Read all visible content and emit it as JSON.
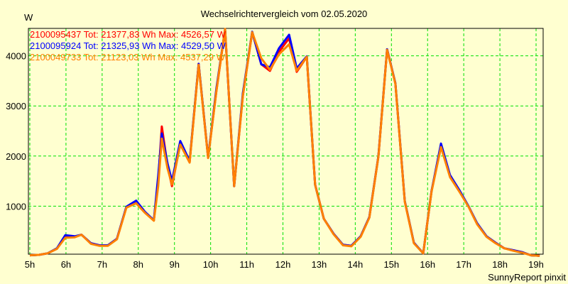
{
  "chart_data": {
    "type": "line",
    "title": "Wechselrichtervergleich vom 02.05.2020",
    "ylabel": "W",
    "xlabel": "",
    "footer": "SunnyReport pinxit",
    "xlim": [
      5,
      19
    ],
    "ylim": [
      0,
      4550
    ],
    "x_ticks": [
      5,
      6,
      7,
      8,
      9,
      10,
      11,
      12,
      13,
      14,
      15,
      16,
      17,
      18,
      19
    ],
    "x_tick_labels": [
      "5h",
      "6h",
      "7h",
      "8h",
      "9h",
      "10h",
      "11h",
      "12h",
      "13h",
      "14h",
      "15h",
      "16h",
      "17h",
      "18h",
      "19h"
    ],
    "y_ticks": [
      1000,
      2000,
      3000,
      4000
    ],
    "y_tick_labels": [
      "1000",
      "2000",
      "3000",
      "4000"
    ],
    "grid": true,
    "grid_color": "#00E000",
    "legend_placement": "top-left",
    "x": [
      5.0,
      5.26,
      5.49,
      5.75,
      5.98,
      6.24,
      6.43,
      6.69,
      6.92,
      7.16,
      7.41,
      7.67,
      7.94,
      8.18,
      8.43,
      8.55,
      8.65,
      8.81,
      8.93,
      9.16,
      9.42,
      9.67,
      9.93,
      10.16,
      10.4,
      10.65,
      10.89,
      11.15,
      11.4,
      11.64,
      11.89,
      12.17,
      12.38,
      12.66,
      12.89,
      13.13,
      13.4,
      13.66,
      13.89,
      14.15,
      14.39,
      14.64,
      14.88,
      15.11,
      15.37,
      15.62,
      15.88,
      16.11,
      16.37,
      16.62,
      16.88,
      17.13,
      17.37,
      17.63,
      17.88,
      18.12,
      18.37,
      18.63,
      18.86,
      19.1
    ],
    "series": [
      {
        "name": "2100095437",
        "legend": "2100095437 Tot: 21377,83 Wh Max: 4526,57 W",
        "color": "#FF0000",
        "values": [
          20,
          30,
          60,
          150,
          400,
          390,
          430,
          260,
          220,
          220,
          350,
          980,
          1100,
          880,
          720,
          1500,
          2590,
          1800,
          1400,
          2250,
          1880,
          3840,
          1970,
          3300,
          4526,
          1400,
          3200,
          4475,
          3830,
          3700,
          4080,
          4350,
          3680,
          3980,
          1430,
          750,
          450,
          230,
          210,
          400,
          780,
          2000,
          4130,
          3450,
          1100,
          270,
          60,
          1300,
          2200,
          1600,
          1300,
          1000,
          650,
          400,
          270,
          160,
          120,
          80,
          20,
          10
        ]
      },
      {
        "name": "2100095924",
        "legend": "2100095924 Tot: 21325,93 Wh Max: 4529,50 W",
        "color": "#0000FF",
        "values": [
          20,
          30,
          60,
          160,
          420,
          400,
          430,
          260,
          220,
          220,
          350,
          990,
          1110,
          890,
          720,
          1600,
          2450,
          1850,
          1500,
          2300,
          1900,
          3840,
          1970,
          3350,
          4529,
          1400,
          3250,
          4480,
          3830,
          3770,
          4150,
          4420,
          3750,
          3990,
          1430,
          750,
          450,
          230,
          210,
          400,
          780,
          2000,
          4130,
          3450,
          1100,
          270,
          60,
          1300,
          2250,
          1620,
          1320,
          1000,
          660,
          400,
          270,
          160,
          120,
          80,
          20,
          10
        ]
      },
      {
        "name": "2100049733",
        "legend": "2100049733 Tot: 21123,03 Wh Max: 4537,29 W",
        "color": "#FF8000",
        "values": [
          20,
          30,
          60,
          150,
          370,
          380,
          430,
          250,
          210,
          210,
          340,
          970,
          1060,
          870,
          710,
          1400,
          2350,
          1750,
          1430,
          2230,
          1870,
          3820,
          1960,
          3300,
          4537,
          1400,
          3200,
          4470,
          3950,
          3720,
          4030,
          4230,
          3700,
          3980,
          1430,
          750,
          440,
          220,
          200,
          390,
          770,
          1990,
          4120,
          3440,
          1090,
          260,
          60,
          1290,
          2180,
          1580,
          1290,
          990,
          640,
          390,
          260,
          160,
          110,
          70,
          20,
          10
        ]
      }
    ]
  }
}
